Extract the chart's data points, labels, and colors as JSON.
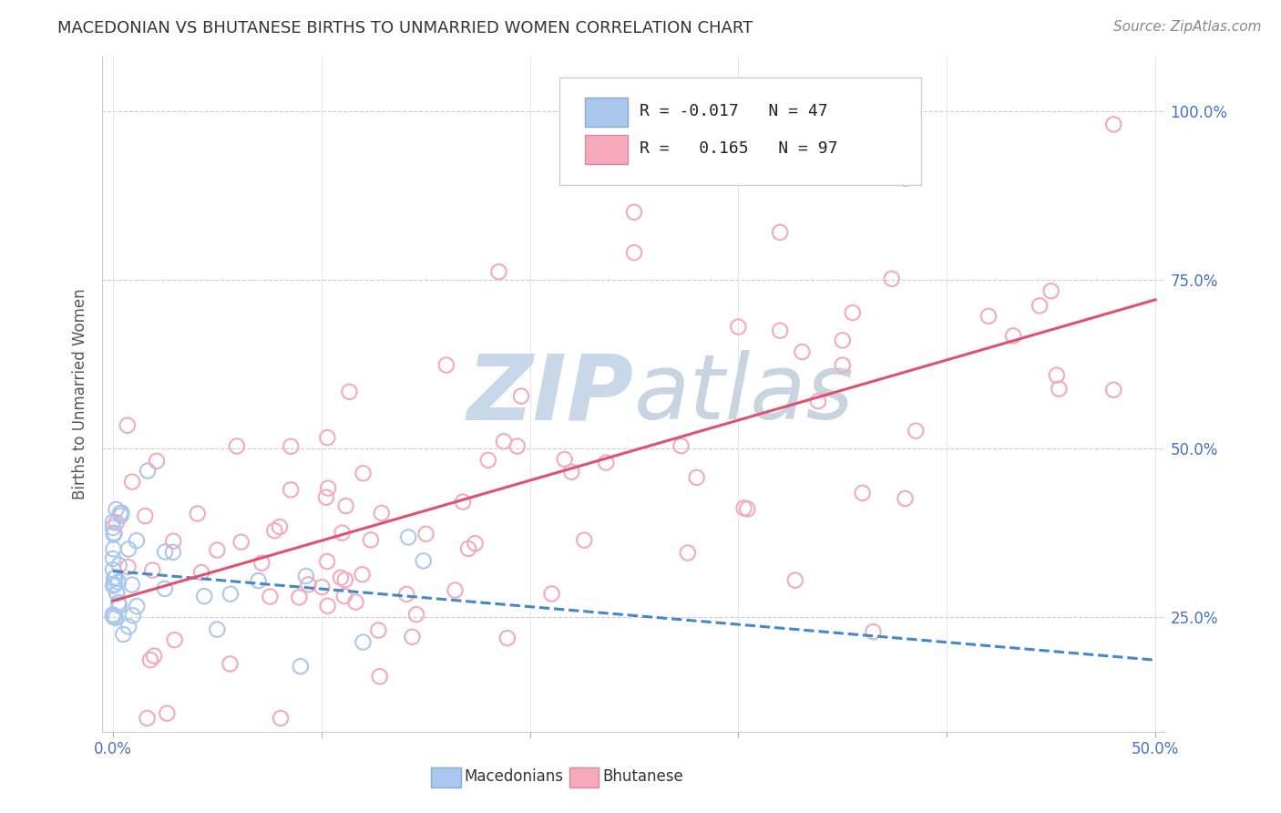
{
  "title": "MACEDONIAN VS BHUTANESE BIRTHS TO UNMARRIED WOMEN CORRELATION CHART",
  "source": "Source: ZipAtlas.com",
  "ylabel": "Births to Unmarried Women",
  "legend_label1": "Macedonians",
  "legend_label2": "Bhutanese",
  "r1": "-0.017",
  "n1": "47",
  "r2": "0.165",
  "n2": "97",
  "xlim": [
    -0.005,
    0.505
  ],
  "ylim": [
    0.08,
    1.08
  ],
  "ytick_positions": [
    0.25,
    0.5,
    0.75,
    1.0
  ],
  "ytick_labels": [
    "25.0%",
    "50.0%",
    "75.0%",
    "100.0%"
  ],
  "xtick_positions": [
    0.0,
    0.1,
    0.2,
    0.3,
    0.4,
    0.5
  ],
  "xtick_labels": [
    "0.0%",
    "",
    "",
    "",
    "",
    "50.0%"
  ],
  "color_blue": "#aac8ee",
  "color_pink": "#f4aabb",
  "color_line_blue": "#4488cc",
  "color_line_pink": "#e05070",
  "background_color": "#ffffff",
  "watermark_color": "#c8d8e8",
  "title_fontsize": 13,
  "tick_fontsize": 12,
  "source_fontsize": 11,
  "legend_fontsize": 13
}
